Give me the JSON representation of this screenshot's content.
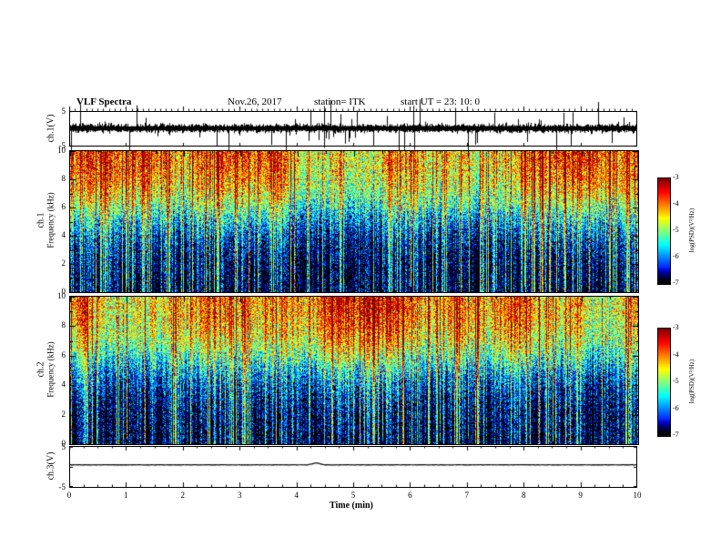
{
  "header": {
    "title": "VLF Spectra",
    "date": "Nov.26, 2017",
    "station": "station= ITK",
    "start_ut": "start UT =  23: 10: 0"
  },
  "x_axis": {
    "label": "Time (min)",
    "ticks": [
      0,
      1,
      2,
      3,
      4,
      5,
      6,
      7,
      8,
      9,
      10
    ],
    "range": [
      0,
      10
    ]
  },
  "panels": {
    "ch1_wave": {
      "ylabel": "ch.1(V)",
      "yticks": [
        5,
        -5
      ],
      "ylim": [
        -5,
        5
      ]
    },
    "ch1_spec": {
      "ylabel_line1": "ch.1",
      "ylabel_line2": "Frequency (kHz)",
      "yticks": [
        10,
        8,
        6,
        4,
        2,
        0
      ],
      "ylim": [
        0,
        10
      ]
    },
    "ch2_spec": {
      "ylabel_line1": "ch.2",
      "ylabel_line2": "Frequency (kHz)",
      "yticks": [
        10,
        8,
        6,
        4,
        2,
        0
      ],
      "ylim": [
        0,
        10
      ]
    },
    "ch3_wave": {
      "ylabel": "ch.3(V)",
      "yticks": [
        5,
        -5
      ],
      "ylim": [
        -5,
        5
      ]
    }
  },
  "colorbar": {
    "label": "log(PSD)(V²/Hz)",
    "ticks": [
      -3,
      -4,
      -5,
      -6,
      -7
    ],
    "range": [
      -7,
      -3
    ]
  },
  "chart_data": [
    {
      "type": "line",
      "name": "ch.1 voltage waveform",
      "xlabel": "Time (min)",
      "xlim": [
        0,
        10
      ],
      "ylabel": "ch.1(V)",
      "ylim": [
        -5,
        5
      ],
      "description": "dense broadband noise band about 0 V (~±1.5 V) with frequent impulsive sferic spikes, some exceeding ±5 V axis limits",
      "render": {
        "seed": 3,
        "band_base": 0.5,
        "band_gain": 0.9,
        "spike_prob": 0.055,
        "spike_gain": 8
      }
    },
    {
      "type": "heatmap",
      "name": "ch.1 VLF spectrogram",
      "xlabel": "Time (min)",
      "xlim": [
        0,
        10
      ],
      "ylabel": "Frequency (kHz)",
      "ylim": [
        0,
        10
      ],
      "value_label": "log(PSD)(V²/Hz)",
      "value_range": [
        -7,
        -3
      ],
      "colormap": "jet-black-floor",
      "description": "green/yellow band above ~6 kHz with red vertical sferic streaks; below ~5 kHz mostly black with dense blue/cyan vertical streaks reaching 0 kHz",
      "render": {
        "seed": 7,
        "base_amplitude": 2.9,
        "base_center": 0.56,
        "base_steepness": 8.0,
        "floor": -7,
        "column_noise": 0.5,
        "pixel_noise": 0.9,
        "sferic_probability": 0.45,
        "sferic_max": 2.6
      }
    },
    {
      "type": "heatmap",
      "name": "ch.2 VLF spectrogram",
      "xlabel": "Time (min)",
      "xlim": [
        0,
        10
      ],
      "ylabel": "Frequency (kHz)",
      "ylim": [
        0,
        10
      ],
      "value_label": "log(PSD)(V²/Hz)",
      "value_range": [
        -7,
        -3
      ],
      "colormap": "jet-black-floor",
      "description": "same structure as ch.1 spectrogram, slightly brighter yellow in the 7-10 kHz band",
      "render": {
        "seed": 13,
        "base_amplitude": 3.0,
        "base_center": 0.55,
        "base_steepness": 8.0,
        "floor": -7,
        "column_noise": 0.5,
        "pixel_noise": 0.9,
        "sferic_probability": 0.45,
        "sferic_max": 2.6
      }
    },
    {
      "type": "line",
      "name": "ch.3 voltage waveform",
      "xlabel": "Time (min)",
      "xlim": [
        0,
        10
      ],
      "ylabel": "ch.3(V)",
      "ylim": [
        -5,
        5
      ],
      "description": "nearly flat thin trace slightly above 0 V with a tiny bump near 4.3 min",
      "render": {
        "seed": 5,
        "level": 0.4,
        "bump_x_min": 4.35,
        "bump_height_v": 0.5
      }
    }
  ]
}
